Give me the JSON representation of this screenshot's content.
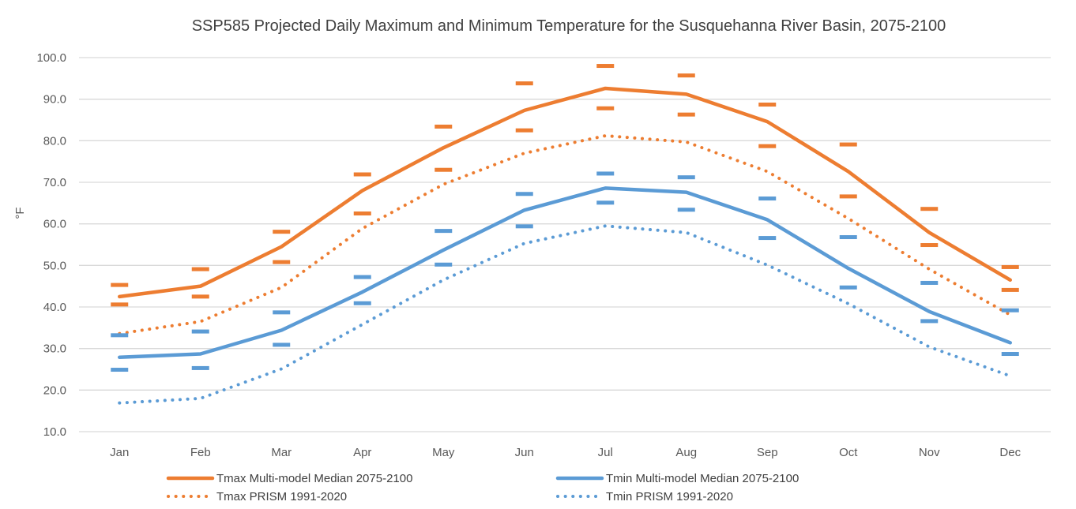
{
  "chart_data": {
    "type": "line",
    "title": "SSP585 Projected Daily Maximum and Minimum Temperature for the Susquehanna River Basin,  2075-2100",
    "xlabel": "",
    "ylabel": "°F",
    "ylim": [
      10,
      100
    ],
    "yticks": [
      "10.0",
      "20.0",
      "30.0",
      "40.0",
      "50.0",
      "60.0",
      "70.0",
      "80.0",
      "90.0",
      "100.0"
    ],
    "grid": true,
    "legend_placement": "bottom",
    "categories": [
      "Jan",
      "Feb",
      "Mar",
      "Apr",
      "May",
      "Jun",
      "Jul",
      "Aug",
      "Sep",
      "Oct",
      "Nov",
      "Dec"
    ],
    "series": [
      {
        "name": "Tmax Multi-model Median 2075-2100",
        "color": "#ED7D31",
        "style": "solid",
        "values": [
          42.5,
          45.0,
          54.5,
          68.0,
          78.3,
          87.3,
          92.6,
          91.2,
          84.6,
          72.6,
          57.9,
          46.5
        ]
      },
      {
        "name": "Tmin Multi-model Median 2075-2100",
        "color": "#5B9BD5",
        "style": "solid",
        "values": [
          27.9,
          28.7,
          34.4,
          43.6,
          53.7,
          63.3,
          68.6,
          67.6,
          61.0,
          49.3,
          38.9,
          31.4
        ]
      },
      {
        "name": "Tmax PRISM 1991-2020",
        "color": "#ED7D31",
        "style": "dotted",
        "values": [
          33.6,
          36.5,
          44.7,
          58.9,
          69.5,
          77.0,
          81.2,
          79.7,
          72.6,
          61.3,
          49.1,
          38.1
        ]
      },
      {
        "name": "Tmin PRISM 1991-2020",
        "color": "#5B9BD5",
        "style": "dotted",
        "values": [
          16.9,
          18.0,
          25.1,
          35.8,
          46.5,
          55.3,
          59.5,
          57.9,
          50.1,
          40.8,
          30.4,
          23.4
        ]
      }
    ],
    "range_markers": [
      {
        "color": "#ED7D31",
        "upper": [
          45.3,
          49.1,
          58.1,
          71.9,
          83.4,
          93.8,
          98.0,
          95.7,
          88.7,
          79.1,
          63.6,
          49.6
        ],
        "lower": [
          40.6,
          42.5,
          50.8,
          62.5,
          73.0,
          82.5,
          87.8,
          86.3,
          78.7,
          66.6,
          54.9,
          44.1
        ]
      },
      {
        "color": "#5B9BD5",
        "upper": [
          33.2,
          34.1,
          38.7,
          47.2,
          58.3,
          67.2,
          72.1,
          71.2,
          66.1,
          56.8,
          45.8,
          39.2
        ],
        "lower": [
          24.9,
          25.3,
          30.9,
          40.9,
          50.2,
          59.4,
          65.1,
          63.4,
          56.6,
          44.7,
          36.6,
          28.7
        ]
      }
    ]
  }
}
